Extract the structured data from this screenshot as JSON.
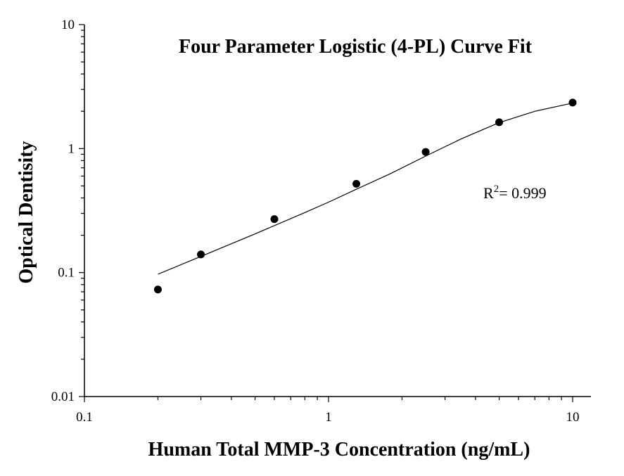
{
  "chart_data": {
    "type": "scatter",
    "title": "Four Parameter Logistic (4-PL) Curve Fit",
    "xlabel": "Human Total MMP-3 Concentration (ng/mL)",
    "ylabel": "Optical Dentisity",
    "xscale": "log",
    "yscale": "log",
    "xlim": [
      0.1,
      10
    ],
    "ylim": [
      0.01,
      10
    ],
    "xticks": [
      0.1,
      1,
      10
    ],
    "xtick_labels": [
      "0.1",
      "1",
      "10"
    ],
    "yticks": [
      0.01,
      0.1,
      1,
      10
    ],
    "ytick_labels": [
      "0.01",
      "0.1",
      "1",
      "10"
    ],
    "grid": false,
    "legend": "none",
    "series": [
      {
        "kind": "points",
        "x": [
          0.2,
          0.3,
          0.6,
          1.3,
          2.5,
          5,
          10
        ],
        "y": [
          0.073,
          0.14,
          0.27,
          0.52,
          0.94,
          1.63,
          2.35
        ]
      },
      {
        "kind": "fit-line",
        "x": [
          0.2,
          0.3,
          0.5,
          0.8,
          1,
          1.3,
          1.8,
          2.5,
          3.5,
          5,
          7,
          10
        ],
        "y": [
          0.097,
          0.135,
          0.205,
          0.305,
          0.37,
          0.47,
          0.63,
          0.87,
          1.2,
          1.62,
          2.0,
          2.33
        ]
      }
    ],
    "annotation": {
      "base": "R",
      "superscript": "2",
      "text": "= 0.999"
    },
    "colors": {
      "points": "#000000",
      "line": "#000000",
      "axis": "#000000"
    }
  }
}
